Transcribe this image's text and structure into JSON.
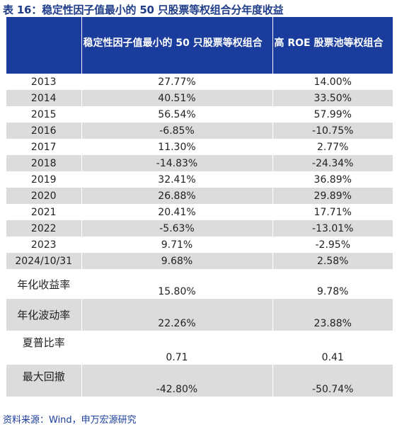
{
  "title": "表 16：稳定性因子值最小的 50 只股票等权组合分年度收益",
  "header": {
    "col0": "",
    "col1": "稳定性因子值最小的 50 只股票等权组合",
    "col2": "高 ROE 股票池等权组合"
  },
  "rows": [
    {
      "label": "2013",
      "a": "27.77%",
      "b": "14.00%"
    },
    {
      "label": "2014",
      "a": "40.51%",
      "b": "33.50%"
    },
    {
      "label": "2015",
      "a": "56.54%",
      "b": "57.99%"
    },
    {
      "label": "2016",
      "a": "-6.85%",
      "b": "-10.75%"
    },
    {
      "label": "2017",
      "a": "11.30%",
      "b": "2.77%"
    },
    {
      "label": "2018",
      "a": "-14.83%",
      "b": "-24.34%"
    },
    {
      "label": "2019",
      "a": "32.41%",
      "b": "36.89%"
    },
    {
      "label": "2020",
      "a": "26.88%",
      "b": "29.89%"
    },
    {
      "label": "2021",
      "a": "20.41%",
      "b": "17.71%"
    },
    {
      "label": "2022",
      "a": "-5.63%",
      "b": "-13.01%"
    },
    {
      "label": "2023",
      "a": "9.71%",
      "b": "-2.95%"
    },
    {
      "label": "2024/10/31",
      "a": "9.68%",
      "b": "2.58%"
    }
  ],
  "stats": [
    {
      "label": "年化收益率",
      "a": "15.80%",
      "b": "9.78%"
    },
    {
      "label": "年化波动率",
      "a": "22.26%",
      "b": "23.88%"
    },
    {
      "label": "夏普比率",
      "a": "0.71",
      "b": "0.41"
    },
    {
      "label": "最大回撤",
      "a": "-42.80%",
      "b": "-50.74%"
    }
  ],
  "source": "资料来源：Wind，申万宏源研究",
  "colors": {
    "header_bg": "#1a3c9c",
    "shade": "#dcdcdc",
    "title": "#1f3d8a"
  }
}
